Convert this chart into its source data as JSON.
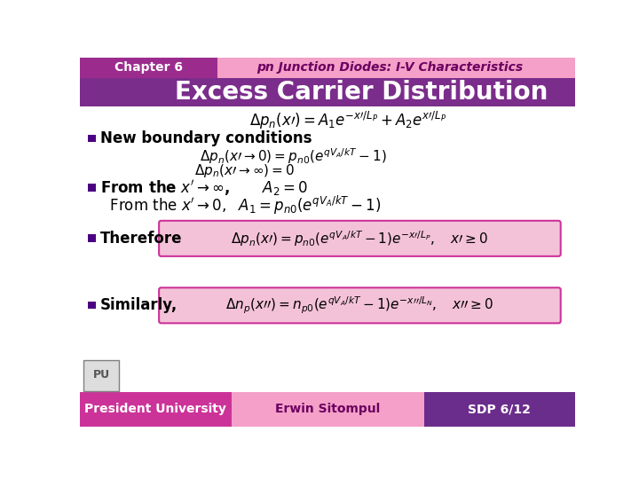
{
  "title_bar_color": "#7B2D8B",
  "header_left_color": "#9B2C8E",
  "header_right_color": "#F4A0C8",
  "chapter_text": "Chapter 6",
  "subtitle_text": "pn Junction Diodes: I-V Characteristics",
  "slide_title": "Excess Carrier Distribution",
  "slide_title_color": "#FFFFFF",
  "slide_bg_color": "#FFFFFF",
  "footer_left_color": "#CC3399",
  "footer_mid_color": "#F4A0C8",
  "footer_right_color": "#6B2D8B",
  "footer_left_text": "President University",
  "footer_mid_text": "Erwin Sitompul",
  "footer_right_text": "SDP 6/12",
  "bullet_color": "#4B0082",
  "box_color": "#F4C2D8",
  "box_border_color": "#CC3399"
}
